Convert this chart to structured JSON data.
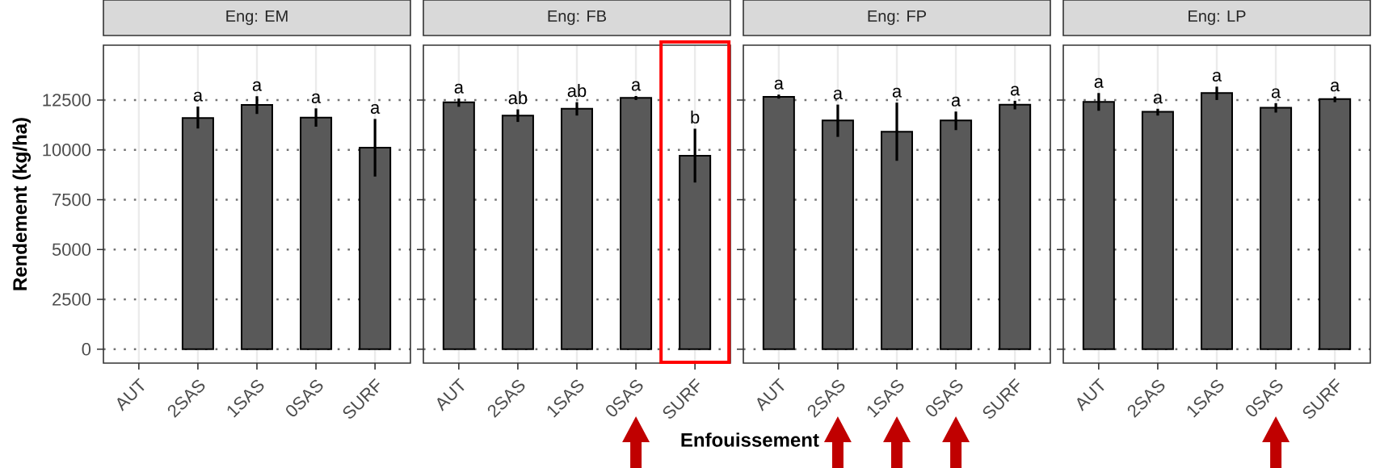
{
  "chart_data": [
    {
      "type": "bar",
      "title": "Eng: EM",
      "ylabel": "Rendement (kg/ha)",
      "categories": [
        "AUT",
        "2SAS",
        "1SAS",
        "0SAS",
        "SURF"
      ],
      "color": "#595959",
      "grid": true,
      "ylim": [
        -700,
        15250
      ],
      "yticks": [
        0,
        2500,
        5000,
        7500,
        10000,
        12500
      ],
      "values": [
        null,
        11600,
        12250,
        11620,
        10110
      ],
      "errors": [
        null,
        [
          11070,
          12170
        ],
        [
          11800,
          12690
        ],
        [
          11160,
          12080
        ],
        [
          8660,
          11550
        ]
      ],
      "value_labels": [
        null,
        "a",
        "a",
        "a",
        "a"
      ]
    },
    {
      "type": "bar",
      "title": "Eng: FB",
      "xlabel": "Enfouissement",
      "categories": [
        "AUT",
        "2SAS",
        "1SAS",
        "0SAS",
        "SURF"
      ],
      "color": "#595959",
      "grid": true,
      "ylim": [
        -700,
        15250
      ],
      "yticks": [
        0,
        2500,
        5000,
        7500,
        10000,
        12500
      ],
      "tick_labels": "x",
      "values": [
        12390,
        11720,
        12060,
        12610,
        9700
      ],
      "errors": [
        [
          12160,
          12570
        ],
        [
          11400,
          12030
        ],
        [
          11720,
          12390
        ],
        [
          12500,
          12700
        ],
        [
          8360,
          11060
        ]
      ],
      "value_labels": [
        "a",
        "ab",
        "ab",
        "a",
        "b"
      ]
    },
    {
      "type": "bar",
      "title": "Eng: FP",
      "categories": [
        "AUT",
        "2SAS",
        "1SAS",
        "0SAS",
        "SURF"
      ],
      "color": "#595959",
      "grid": true,
      "ylim": [
        -700,
        15250
      ],
      "yticks": [
        0,
        2500,
        5000,
        7500,
        10000,
        12500
      ],
      "tick_labels": "x",
      "values": [
        12660,
        11480,
        10910,
        11480,
        12260
      ],
      "errors": [
        [
          12570,
          12770
        ],
        [
          10650,
          12270
        ],
        [
          9450,
          12370
        ],
        [
          10990,
          11920
        ],
        [
          12030,
          12460
        ]
      ],
      "value_labels": [
        "a",
        "a",
        "a",
        "a",
        "a"
      ]
    },
    {
      "type": "bar",
      "title": "Eng: LP",
      "categories": [
        "AUT",
        "2SAS",
        "1SAS",
        "0SAS",
        "SURF"
      ],
      "color": "#595959",
      "grid": true,
      "ylim": [
        -700,
        15250
      ],
      "yticks": [
        0,
        2500,
        5000,
        7500,
        10000,
        12500
      ],
      "tick_labels": "x",
      "values": [
        12410,
        11910,
        12850,
        12110,
        12550
      ],
      "errors": [
        [
          11960,
          12850
        ],
        [
          11720,
          12060
        ],
        [
          12500,
          13170
        ],
        [
          11870,
          12340
        ],
        [
          12390,
          12670
        ]
      ],
      "value_labels": [
        "a",
        "a",
        "a",
        "a",
        "a"
      ]
    }
  ]
}
